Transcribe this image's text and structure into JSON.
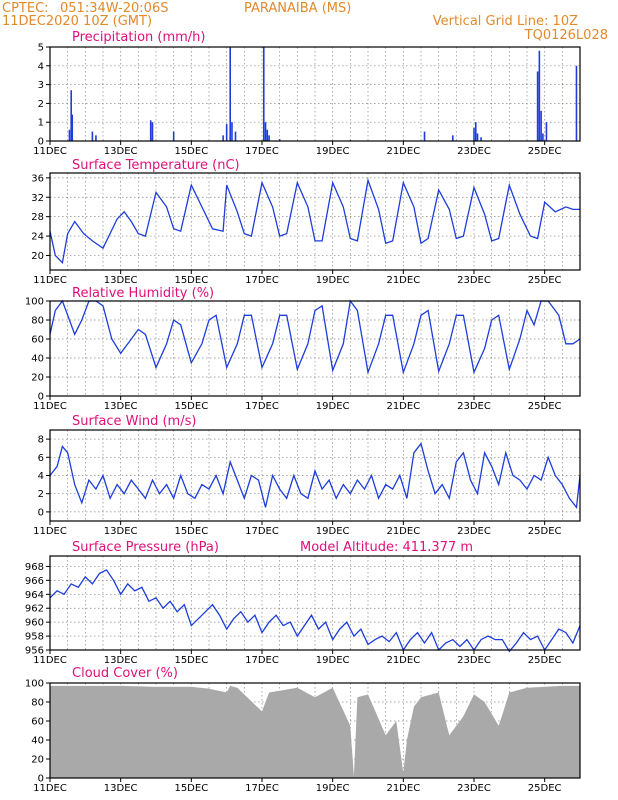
{
  "header": {
    "source": "CPTEC:",
    "location": "051:34W-20:06S",
    "station": "PARANAIBA (MS)",
    "date": "11DEC2020 10Z (GMT)",
    "grid_note": "Vertical Grid Line: 10Z",
    "code": "TQ0126L028"
  },
  "x_ticks": [
    "11DEC",
    "13DEC",
    "15DEC",
    "17DEC",
    "19DEC",
    "21DEC",
    "23DEC",
    "25DEC"
  ],
  "colors": {
    "header": "#e08a2c",
    "title": "#e0107a",
    "series": "#1e3ddc",
    "cloud": "#a9a9a9"
  },
  "chart_data": [
    {
      "type": "bar",
      "title": "Precipitation (mm/h)",
      "ylim": [
        0,
        5
      ],
      "yticks": [
        "0",
        "1",
        "2",
        "3",
        "4",
        "5"
      ],
      "x": [
        11.55,
        11.6,
        11.63,
        12.2,
        12.3,
        13.85,
        13.9,
        14.5,
        15.9,
        16.0,
        16.1,
        16.15,
        16.25,
        17.05,
        17.1,
        17.15,
        17.2,
        17.5,
        19.5,
        21.6,
        22.4,
        23.0,
        23.05,
        23.1,
        23.2,
        24.8,
        24.85,
        24.9,
        24.95,
        25.05,
        25.9
      ],
      "values": [
        0.6,
        2.7,
        1.4,
        0.5,
        0.3,
        1.1,
        1.0,
        0.5,
        0.3,
        0.9,
        5.0,
        1.0,
        0.5,
        5.0,
        1.0,
        0.6,
        0.3,
        0.1,
        0.05,
        0.5,
        0.3,
        0.7,
        1.0,
        0.4,
        0.2,
        3.7,
        4.8,
        1.6,
        0.4,
        1.0,
        4.0
      ]
    },
    {
      "type": "line",
      "title": "Surface Temperature (nC)",
      "ylim": [
        17,
        37
      ],
      "yticks": [
        "20",
        "24",
        "28",
        "32",
        "36"
      ],
      "x": [
        11.0,
        11.15,
        11.35,
        11.5,
        11.7,
        11.95,
        12.2,
        12.5,
        12.9,
        13.1,
        13.3,
        13.5,
        13.7,
        14.0,
        14.3,
        14.5,
        14.7,
        15.0,
        15.3,
        15.6,
        15.9,
        16.0,
        16.3,
        16.5,
        16.7,
        17.0,
        17.3,
        17.5,
        17.7,
        18.0,
        18.3,
        18.5,
        18.7,
        19.0,
        19.3,
        19.5,
        19.7,
        20.0,
        20.3,
        20.5,
        20.7,
        21.0,
        21.3,
        21.5,
        21.7,
        22.0,
        22.3,
        22.5,
        22.7,
        23.0,
        23.3,
        23.5,
        23.7,
        24.0,
        24.3,
        24.6,
        24.8,
        25.0,
        25.3,
        25.6,
        25.8,
        26.0
      ],
      "values": [
        25.0,
        20.0,
        18.5,
        24.5,
        27.0,
        24.5,
        23.0,
        21.5,
        27.5,
        29.0,
        27.0,
        24.5,
        24.0,
        33.0,
        30.0,
        25.5,
        25.0,
        34.5,
        30.0,
        25.5,
        25.0,
        34.5,
        29.0,
        24.5,
        24.0,
        35.0,
        30.0,
        24.0,
        24.5,
        35.0,
        30.0,
        23.0,
        23.0,
        35.0,
        30.0,
        23.5,
        23.0,
        35.5,
        29.5,
        22.5,
        23.0,
        35.0,
        30.0,
        22.5,
        23.5,
        33.5,
        29.5,
        23.5,
        24.0,
        34.0,
        28.5,
        23.0,
        23.5,
        34.5,
        28.5,
        24.0,
        23.5,
        31.0,
        29.0,
        30.0,
        29.5,
        29.5
      ]
    },
    {
      "type": "line",
      "title": "Relative Humidity (%)",
      "ylim": [
        0,
        100
      ],
      "yticks": [
        "0",
        "20",
        "40",
        "60",
        "80",
        "100"
      ],
      "x": [
        11.0,
        11.15,
        11.35,
        11.5,
        11.7,
        11.9,
        12.1,
        12.3,
        12.5,
        12.75,
        13.0,
        13.3,
        13.5,
        13.7,
        14.0,
        14.3,
        14.5,
        14.7,
        15.0,
        15.3,
        15.5,
        15.7,
        16.0,
        16.3,
        16.5,
        16.7,
        17.0,
        17.3,
        17.5,
        17.7,
        18.0,
        18.3,
        18.5,
        18.7,
        19.0,
        19.3,
        19.5,
        19.7,
        20.0,
        20.3,
        20.5,
        20.7,
        21.0,
        21.3,
        21.5,
        21.7,
        22.0,
        22.3,
        22.5,
        22.7,
        23.0,
        23.3,
        23.5,
        23.7,
        24.0,
        24.3,
        24.5,
        24.7,
        24.9,
        25.1,
        25.4,
        25.6,
        25.8,
        26.0
      ],
      "values": [
        65.0,
        90.0,
        100.0,
        85.0,
        65.0,
        80.0,
        100.0,
        100.0,
        95.0,
        60.0,
        45.0,
        60.0,
        70.0,
        65.0,
        30.0,
        55.0,
        80.0,
        75.0,
        35.0,
        55.0,
        80.0,
        85.0,
        30.0,
        55.0,
        85.0,
        85.0,
        30.0,
        55.0,
        85.0,
        85.0,
        28.0,
        55.0,
        90.0,
        95.0,
        27.0,
        55.0,
        100.0,
        90.0,
        25.0,
        55.0,
        85.0,
        85.0,
        25.0,
        55.0,
        85.0,
        90.0,
        26.0,
        55.0,
        85.0,
        85.0,
        25.0,
        50.0,
        80.0,
        85.0,
        28.0,
        60.0,
        90.0,
        75.0,
        100.0,
        100.0,
        85.0,
        55.0,
        55.0,
        60.0
      ]
    },
    {
      "type": "line",
      "title": "Surface Wind (m/s)",
      "ylim": [
        -1,
        9
      ],
      "yticks": [
        "0",
        "2",
        "4",
        "6",
        "8"
      ],
      "x": [
        11.0,
        11.2,
        11.35,
        11.5,
        11.7,
        11.9,
        12.1,
        12.3,
        12.5,
        12.7,
        12.9,
        13.1,
        13.3,
        13.5,
        13.7,
        13.9,
        14.1,
        14.3,
        14.5,
        14.7,
        14.9,
        15.1,
        15.3,
        15.5,
        15.7,
        15.9,
        16.1,
        16.3,
        16.5,
        16.7,
        16.9,
        17.1,
        17.3,
        17.5,
        17.7,
        17.9,
        18.1,
        18.3,
        18.5,
        18.7,
        18.9,
        19.1,
        19.3,
        19.5,
        19.7,
        19.9,
        20.1,
        20.3,
        20.5,
        20.7,
        20.9,
        21.1,
        21.3,
        21.5,
        21.7,
        21.9,
        22.1,
        22.3,
        22.5,
        22.7,
        22.9,
        23.1,
        23.3,
        23.5,
        23.7,
        23.9,
        24.1,
        24.3,
        24.5,
        24.7,
        24.9,
        25.1,
        25.3,
        25.5,
        25.7,
        25.9,
        26.0
      ],
      "values": [
        4.0,
        5.0,
        7.2,
        6.5,
        3.0,
        1.0,
        3.5,
        2.5,
        4.0,
        1.5,
        3.0,
        2.0,
        3.5,
        2.5,
        1.5,
        3.5,
        2.0,
        3.0,
        1.5,
        4.0,
        2.0,
        1.5,
        3.0,
        2.5,
        4.0,
        2.0,
        5.5,
        3.5,
        1.5,
        4.0,
        3.5,
        0.5,
        4.0,
        2.5,
        1.5,
        4.0,
        2.0,
        1.5,
        4.5,
        2.5,
        3.5,
        1.5,
        3.0,
        2.0,
        3.5,
        2.5,
        4.0,
        1.5,
        3.0,
        2.5,
        4.0,
        1.5,
        6.5,
        7.5,
        4.5,
        2.0,
        3.0,
        1.5,
        5.5,
        6.5,
        3.5,
        2.0,
        6.5,
        5.0,
        3.0,
        6.5,
        4.0,
        3.5,
        2.5,
        4.0,
        3.5,
        6.0,
        4.0,
        3.0,
        1.5,
        0.5,
        4.0
      ]
    },
    {
      "type": "line",
      "title": "Surface Pressure (hPa)",
      "annotation": "Model Altitude: 411.377 m",
      "ylim": [
        956,
        969.5
      ],
      "yticks": [
        "956",
        "958",
        "960",
        "962",
        "964",
        "966",
        "968"
      ],
      "x": [
        11.0,
        11.2,
        11.4,
        11.6,
        11.8,
        12.0,
        12.2,
        12.4,
        12.6,
        12.8,
        13.0,
        13.2,
        13.4,
        13.6,
        13.8,
        14.0,
        14.2,
        14.4,
        14.6,
        14.8,
        15.0,
        15.2,
        15.4,
        15.6,
        15.8,
        16.0,
        16.2,
        16.4,
        16.6,
        16.8,
        17.0,
        17.2,
        17.4,
        17.6,
        17.8,
        18.0,
        18.2,
        18.4,
        18.6,
        18.8,
        19.0,
        19.2,
        19.4,
        19.6,
        19.8,
        20.0,
        20.2,
        20.4,
        20.6,
        20.8,
        21.0,
        21.2,
        21.4,
        21.6,
        21.8,
        22.0,
        22.2,
        22.4,
        22.6,
        22.8,
        23.0,
        23.2,
        23.4,
        23.6,
        23.8,
        24.0,
        24.2,
        24.4,
        24.6,
        24.8,
        25.0,
        25.2,
        25.4,
        25.6,
        25.8,
        26.0
      ],
      "values": [
        963.5,
        964.5,
        964.0,
        965.5,
        965.0,
        966.5,
        965.5,
        967.0,
        967.5,
        966.0,
        964.0,
        965.5,
        964.5,
        965.0,
        963.0,
        963.5,
        962.0,
        963.0,
        961.5,
        962.5,
        959.5,
        960.5,
        961.5,
        962.5,
        961.0,
        959.0,
        960.5,
        961.5,
        960.0,
        961.0,
        958.5,
        960.0,
        961.0,
        959.5,
        960.0,
        958.0,
        959.5,
        961.0,
        959.0,
        960.0,
        957.5,
        959.0,
        960.0,
        958.0,
        959.0,
        956.8,
        957.5,
        958.0,
        957.2,
        958.5,
        956.0,
        957.5,
        958.5,
        957.0,
        958.5,
        956.0,
        957.0,
        957.5,
        956.5,
        957.5,
        956.0,
        957.5,
        958.0,
        957.5,
        957.5,
        955.8,
        957.0,
        958.5,
        957.5,
        958.0,
        956.0,
        957.5,
        959.0,
        958.5,
        957.0,
        959.5
      ]
    },
    {
      "type": "area",
      "title": "Cloud Cover (%)",
      "ylim": [
        0,
        100
      ],
      "yticks": [
        "0",
        "20",
        "40",
        "60",
        "80",
        "100"
      ],
      "x": [
        11.0,
        12.0,
        13.0,
        14.0,
        15.0,
        15.5,
        16.0,
        16.1,
        16.3,
        17.0,
        17.2,
        18.0,
        18.5,
        19.0,
        19.5,
        19.6,
        19.7,
        20.0,
        20.5,
        20.8,
        21.0,
        21.1,
        21.3,
        21.5,
        22.0,
        22.3,
        22.7,
        23.0,
        23.3,
        23.7,
        24.0,
        24.5,
        25.0,
        25.5,
        26.0
      ],
      "values": [
        97.0,
        97.0,
        97.0,
        96.0,
        96.0,
        94.0,
        90.0,
        97.0,
        95.0,
        70.0,
        90.0,
        95.0,
        85.0,
        95.0,
        55.0,
        2.0,
        85.0,
        88.0,
        45.0,
        60.0,
        5.0,
        40.0,
        75.0,
        85.0,
        90.0,
        45.0,
        65.0,
        88.0,
        80.0,
        55.0,
        90.0,
        95.0,
        96.0,
        97.0,
        97.0
      ]
    }
  ]
}
